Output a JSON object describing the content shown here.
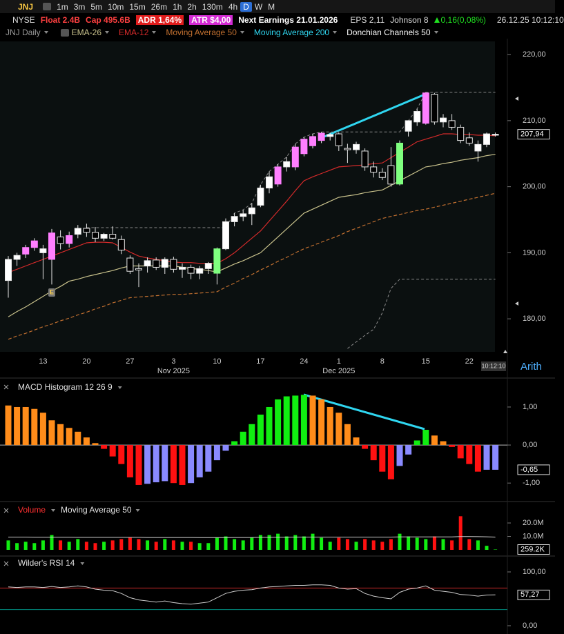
{
  "toolbar": {
    "symbol": "JNJ",
    "timeframes": [
      "1m",
      "3m",
      "5m",
      "10m",
      "15m",
      "26m",
      "1h",
      "2h",
      "130m",
      "4h",
      "D",
      "W",
      "M"
    ],
    "active": "D"
  },
  "info": {
    "exchange": "NYSE",
    "float": "Float 2.4B",
    "cap": "Cap 495.6B",
    "adr": "ADR  1,64%",
    "atr": "ATR $4,00",
    "earnings": "Next Earnings 21.01.2026",
    "eps": "EPS 2,11",
    "company": "Johnson 8",
    "change": "0,16(0,08%)",
    "datetime": "26.12.25  10:12:10"
  },
  "time_label": "10:12:10",
  "scale_mode": "Arith",
  "chart_data": [
    {
      "type": "candlestick",
      "title": "JNJ Daily",
      "categories": [
        null,
        null,
        null,
        null,
        "13",
        null,
        null,
        null,
        null,
        "20",
        null,
        null,
        null,
        null,
        "27",
        null,
        null,
        null,
        null,
        "3",
        null,
        null,
        null,
        null,
        "10",
        null,
        null,
        null,
        null,
        "17",
        null,
        null,
        null,
        null,
        "24",
        null,
        null,
        null,
        "1",
        null,
        null,
        null,
        null,
        "8",
        null,
        null,
        null,
        null,
        "15",
        null,
        null,
        null,
        null,
        "22",
        null,
        null,
        null
      ],
      "month_labels": [
        null,
        null,
        null,
        null,
        null,
        null,
        null,
        null,
        null,
        null,
        null,
        null,
        null,
        null,
        null,
        null,
        null,
        null,
        null,
        "Nov 2025",
        null,
        null,
        null,
        null,
        null,
        null,
        null,
        null,
        null,
        null,
        null,
        null,
        null,
        null,
        null,
        null,
        null,
        null,
        "Dec 2025",
        null,
        null,
        null,
        null,
        null,
        null,
        null,
        null,
        null,
        null,
        null,
        null,
        null,
        null,
        null,
        null,
        null,
        null
      ],
      "open": [
        185.8,
        189.0,
        189.8,
        190.8,
        190.0,
        189.0,
        192.4,
        191.4,
        192.8,
        193.7,
        193.1,
        192.2,
        192.8,
        192.0,
        189.2,
        187.6,
        188.0,
        188.9,
        187.8,
        189.0,
        187.5,
        187.8,
        186.9,
        187.6,
        186.9,
        190.6,
        194.7,
        195.5,
        195.9,
        197.2,
        199.8,
        200.4,
        203.0,
        203.0,
        205.0,
        206.2,
        207.0,
        207.6,
        208.0,
        205.8,
        205.6,
        205.4,
        203.0,
        202.2,
        203.2,
        200.4,
        208.4,
        209.8,
        209.6,
        214.0,
        209.8,
        210.0,
        209.0,
        207.4,
        205.4,
        206.4,
        207.8
      ],
      "high": [
        189.5,
        190.0,
        191.2,
        192.2,
        191.2,
        193.6,
        193.4,
        193.2,
        194.2,
        194.4,
        193.9,
        193.0,
        194.0,
        192.6,
        189.6,
        188.4,
        189.3,
        189.3,
        189.3,
        189.4,
        188.4,
        188.2,
        188.0,
        188.6,
        190.8,
        195.2,
        196.0,
        196.5,
        197.5,
        200.3,
        202.3,
        203.4,
        204.5,
        206.5,
        207.5,
        208.0,
        208.3,
        208.2,
        208.2,
        206.5,
        206.8,
        205.8,
        203.8,
        202.8,
        206.0,
        207.0,
        210.0,
        211.8,
        214.3,
        214.2,
        211.0,
        211.0,
        209.4,
        208.2,
        207.0,
        208.2,
        208.2
      ],
      "low": [
        183.2,
        188.0,
        189.2,
        190.3,
        186.0,
        185.2,
        190.5,
        190.8,
        192.2,
        192.4,
        191.6,
        191.8,
        192.0,
        189.8,
        186.8,
        184.8,
        187.0,
        187.4,
        186.8,
        187.0,
        186.2,
        186.0,
        186.0,
        186.8,
        185.2,
        190.4,
        194.0,
        194.8,
        194.2,
        196.9,
        199.0,
        200.0,
        202.3,
        202.5,
        204.6,
        205.8,
        206.6,
        207.0,
        205.4,
        203.6,
        205.0,
        202.4,
        201.4,
        201.0,
        200.0,
        200.2,
        207.6,
        209.2,
        209.4,
        209.4,
        209.0,
        208.6,
        206.6,
        206.2,
        203.8,
        206.0,
        207.6
      ],
      "close": [
        189.0,
        189.6,
        190.8,
        191.8,
        190.6,
        193.0,
        191.4,
        192.6,
        193.7,
        193.1,
        192.2,
        192.8,
        192.2,
        190.4,
        187.2,
        187.4,
        188.8,
        187.8,
        189.0,
        187.5,
        187.8,
        186.9,
        187.6,
        188.4,
        190.6,
        194.7,
        195.5,
        195.9,
        196.8,
        199.8,
        201.5,
        203.0,
        203.8,
        206.0,
        207.2,
        207.6,
        208.1,
        207.9,
        206.2,
        205.6,
        206.4,
        203.0,
        202.2,
        201.4,
        200.4,
        206.6,
        210.0,
        211.4,
        214.2,
        209.8,
        210.4,
        209.0,
        207.0,
        206.6,
        206.4,
        208.0,
        207.94
      ],
      "last_label": "207,94",
      "colors": [
        "#ffffff",
        "#ffffff",
        "#ff7fff",
        "#ff7fff",
        "#ffffff",
        "#ff7fff",
        "#000000",
        "#ff7fff",
        "#ffffff",
        "#000000",
        "#000000",
        "#ffffff",
        "#000000",
        "#000000",
        "#000000",
        "#000000",
        "#ffffff",
        "#000000",
        "#ffffff",
        "#000000",
        "#ffffff",
        "#000000",
        "#ffffff",
        "#ffffff",
        "#7fff7f",
        "#ffffff",
        "#ffffff",
        "#ffffff",
        "#ffffff",
        "#ffffff",
        "#ffffff",
        "#ff7fff",
        "#ffffff",
        "#ff7fff",
        "#ff7fff",
        "#ff7fff",
        "#ff7fff",
        "#ffffff",
        "#000000",
        "#000000",
        "#ffffff",
        "#000000",
        "#000000",
        "#000000",
        "#000000",
        "#7fff7f",
        "#ffffff",
        "#ffffff",
        "#ff7fff",
        "#000000",
        "#ffffff",
        "#000000",
        "#000000",
        "#000000",
        "#ffffff",
        "#ffffff",
        "#ffffff"
      ],
      "events": [
        {
          "index": 5,
          "label": "E"
        }
      ],
      "overlays": [
        {
          "name": "EMA-26",
          "color": "#c9c28c",
          "dash": false,
          "values": [
            180.3,
            181.1,
            181.8,
            182.6,
            183.4,
            184.2,
            184.9,
            185.7,
            186.0,
            186.4,
            186.7,
            187.0,
            187.3,
            187.7,
            188.0,
            188.0,
            188.0,
            188.0,
            188.0,
            188.0,
            187.8,
            187.6,
            187.5,
            187.3,
            187.1,
            187.7,
            188.3,
            188.8,
            189.4,
            190.0,
            191.2,
            192.4,
            193.6,
            194.8,
            196.0,
            196.6,
            197.2,
            197.8,
            198.4,
            198.6,
            198.8,
            199.1,
            199.3,
            199.5,
            200.2,
            200.9,
            201.6,
            202.3,
            203.0,
            203.2,
            203.5,
            203.7,
            204.0,
            204.2,
            204.4,
            204.7,
            204.9
          ]
        },
        {
          "name": "EMA-12",
          "color": "#d42a2a",
          "dash": false,
          "values": [
            187.0,
            187.5,
            188.0,
            188.5,
            189.0,
            189.5,
            190.0,
            190.5,
            191.0,
            191.5,
            191.6,
            191.6,
            191.5,
            190.8,
            190.1,
            189.5,
            189.2,
            189.0,
            188.8,
            188.6,
            188.5,
            188.5,
            188.4,
            188.4,
            188.4,
            189.1,
            190.0,
            191.1,
            192.2,
            193.3,
            194.8,
            196.3,
            197.8,
            199.4,
            200.9,
            201.5,
            202.0,
            202.5,
            203.0,
            203.1,
            203.2,
            203.3,
            203.5,
            203.6,
            204.4,
            205.2,
            206.0,
            206.8,
            207.2,
            207.6,
            208.0,
            208.0,
            207.9,
            207.9,
            207.8,
            207.8,
            207.7
          ]
        },
        {
          "name": "Moving Average 50",
          "color": "#c27030",
          "dash": true,
          "values": [
            176.9,
            177.4,
            177.8,
            178.3,
            178.8,
            179.2,
            179.7,
            180.1,
            180.6,
            181.0,
            181.5,
            181.9,
            182.4,
            182.8,
            183.2,
            183.3,
            183.4,
            183.5,
            183.6,
            183.7,
            183.7,
            183.8,
            183.9,
            184.0,
            184.1,
            184.8,
            185.4,
            186.1,
            186.7,
            187.4,
            188.0,
            188.7,
            189.3,
            190.0,
            190.6,
            191.1,
            191.6,
            192.1,
            192.6,
            193.2,
            193.7,
            194.2,
            194.7,
            195.2,
            195.5,
            195.8,
            196.1,
            196.4,
            196.6,
            196.9,
            197.2,
            197.5,
            197.8,
            198.1,
            198.4,
            198.7,
            199.0
          ]
        },
        {
          "name": "Moving Average 200",
          "color": "#2fd6f0"
        }
      ],
      "donchian": {
        "name": "Donchian Channels 50",
        "color": "#8a8a8a",
        "upper": [
          null,
          null,
          null,
          null,
          null,
          null,
          null,
          null,
          null,
          193.8,
          193.8,
          193.8,
          193.8,
          193.8,
          193.8,
          193.8,
          193.8,
          193.8,
          193.8,
          193.8,
          193.8,
          193.8,
          193.8,
          193.8,
          193.8,
          193.8,
          196.0,
          196.5,
          197.5,
          200.3,
          202.3,
          203.4,
          204.5,
          206.5,
          207.5,
          208.0,
          208.3,
          208.3,
          208.3,
          208.3,
          208.3,
          208.3,
          208.3,
          208.3,
          208.3,
          208.3,
          210.0,
          211.8,
          214.3,
          214.3,
          214.3,
          214.3,
          214.3,
          214.3,
          214.3,
          214.3,
          214.3
        ],
        "lower": [
          null,
          null,
          null,
          null,
          null,
          null,
          null,
          null,
          null,
          null,
          null,
          null,
          null,
          null,
          null,
          null,
          null,
          null,
          null,
          null,
          null,
          null,
          null,
          null,
          null,
          null,
          null,
          null,
          null,
          null,
          null,
          null,
          null,
          null,
          null,
          null,
          null,
          null,
          null,
          175.5,
          176.5,
          177.5,
          178.4,
          180.9,
          184.6,
          186.0,
          186.0,
          186.0,
          186.0,
          186.0,
          186.0,
          186.0,
          186.0,
          186.0,
          186.0,
          186.0,
          186.0
        ]
      },
      "ylim": [
        175,
        222
      ],
      "yticks": [
        {
          "value": 180,
          "label": "180,00"
        },
        {
          "value": 190,
          "label": "190,00"
        },
        {
          "value": 200,
          "label": "200,00"
        },
        {
          "value": 210,
          "label": "210,00"
        },
        {
          "value": 220,
          "label": "220,00"
        }
      ],
      "grid": false
    },
    {
      "type": "bar",
      "title": "MACD Histogram 12 26 9",
      "values": [
        1.04,
        1.0,
        1.0,
        0.95,
        0.85,
        0.65,
        0.55,
        0.45,
        0.35,
        0.2,
        0.05,
        -0.1,
        -0.3,
        -0.5,
        -0.85,
        -1.05,
        -1.02,
        -0.98,
        -0.95,
        -1.0,
        -1.05,
        -1.0,
        -0.85,
        -0.7,
        -0.4,
        -0.15,
        0.1,
        0.35,
        0.55,
        0.8,
        1.0,
        1.2,
        1.28,
        1.3,
        1.32,
        1.3,
        1.2,
        1.0,
        0.85,
        0.55,
        0.2,
        -0.1,
        -0.4,
        -0.7,
        -0.9,
        -0.55,
        -0.25,
        0.12,
        0.4,
        0.25,
        0.1,
        -0.05,
        -0.35,
        -0.5,
        -0.7,
        -0.65,
        -0.65
      ],
      "last_label": "-0,65",
      "colors": [
        "#ff8c1a",
        "#ff8c1a",
        "#ff8c1a",
        "#ff8c1a",
        "#ff8c1a",
        "#ff8c1a",
        "#ff8c1a",
        "#ff8c1a",
        "#ff8c1a",
        "#ff8c1a",
        "#ff8c1a",
        "#ff1111",
        "#ff1111",
        "#ff1111",
        "#ff1111",
        "#ff1111",
        "#8a8aff",
        "#8a8aff",
        "#8a8aff",
        "#ff1111",
        "#ff1111",
        "#8a8aff",
        "#8a8aff",
        "#8a8aff",
        "#8a8aff",
        "#8a8aff",
        "#11ee11",
        "#11ee11",
        "#11ee11",
        "#11ee11",
        "#11ee11",
        "#11ee11",
        "#11ee11",
        "#11ee11",
        "#11ee11",
        "#ff8c1a",
        "#ff8c1a",
        "#ff8c1a",
        "#ff8c1a",
        "#ff8c1a",
        "#ff8c1a",
        "#ff1111",
        "#ff1111",
        "#ff1111",
        "#ff1111",
        "#8a8aff",
        "#8a8aff",
        "#11ee11",
        "#11ee11",
        "#ff8c1a",
        "#ff8c1a",
        "#ff1111",
        "#ff1111",
        "#ff1111",
        "#ff1111",
        "#8a8aff",
        "#8a8aff"
      ],
      "ylim": [
        -1.45,
        1.58
      ],
      "yticks": [
        {
          "value": -1,
          "label": "-1,00"
        },
        {
          "value": 0,
          "label": "0,00"
        },
        {
          "value": 1,
          "label": "1,00"
        }
      ],
      "zero_line": true
    },
    {
      "type": "bar",
      "title": "Volume",
      "title_color": "#ff3030",
      "up_color": "#11ee11",
      "down_color": "#ff1111",
      "values": [
        7000000,
        5000000,
        6000000,
        5000000,
        7000000,
        11000000,
        7000000,
        6000000,
        8000000,
        6000000,
        5000000,
        6000000,
        7000000,
        8000000,
        9000000,
        8000000,
        7000000,
        6000000,
        8000000,
        7000000,
        6000000,
        6000000,
        5000000,
        5000000,
        9000000,
        10000000,
        8000000,
        7000000,
        9000000,
        11000000,
        11000000,
        12000000,
        10000000,
        11000000,
        10000000,
        12000000,
        9000000,
        6000000,
        9000000,
        8000000,
        6000000,
        8000000,
        7000000,
        6000000,
        8000000,
        12000000,
        10000000,
        9000000,
        8000000,
        10000000,
        8000000,
        7000000,
        25000000,
        8000000,
        7000000,
        3000000,
        259200
      ],
      "last_label": "259.2K",
      "series": [
        {
          "name": "Moving Average 50",
          "color": "#cfcfcf",
          "values": [
            9500000,
            9500000,
            9500000,
            9400000,
            9400000,
            9400000,
            9400000,
            9400000,
            9300000,
            9300000,
            9300000,
            9300000,
            9300000,
            9300000,
            9300000,
            9300000,
            9200000,
            9200000,
            9200000,
            9200000,
            9200000,
            9200000,
            9100000,
            9100000,
            9100000,
            9100000,
            9200000,
            9200000,
            9200000,
            9300000,
            9300000,
            9400000,
            9400000,
            9500000,
            9500000,
            9500000,
            9500000,
            9500000,
            9500000,
            9500000,
            9500000,
            9500000,
            9500000,
            9500000,
            9500000,
            9600000,
            9600000,
            9600000,
            9600000,
            9600000,
            9600000,
            9600000,
            9900000,
            9900000,
            9800000,
            9700000,
            9500000
          ]
        }
      ],
      "ylim": [
        0,
        26700000
      ],
      "yticks": [
        {
          "value": 10000000,
          "label": "10.0M"
        },
        {
          "value": 20000000,
          "label": "20.0M"
        }
      ]
    },
    {
      "type": "line",
      "title": "Wilder's RSI 14",
      "color": "#cfcfcf",
      "values": [
        72,
        71,
        72,
        72,
        71,
        73,
        71,
        72,
        74,
        72,
        68,
        66,
        65,
        60,
        52,
        48,
        46,
        44,
        46,
        43,
        41,
        40,
        42,
        44,
        52,
        60,
        64,
        66,
        67,
        70,
        72,
        73,
        74,
        75,
        75,
        76,
        76,
        75,
        70,
        68,
        69,
        60,
        55,
        52,
        50,
        62,
        68,
        70,
        74,
        66,
        64,
        62,
        58,
        57,
        55,
        57,
        57.27
      ],
      "last_label": "57,27",
      "levels": [
        {
          "value": 70,
          "color": "#c62828"
        },
        {
          "value": 30,
          "color": "#00897b"
        }
      ],
      "ylim": [
        -6.4,
        121.8
      ],
      "yticks": [
        {
          "value": 0,
          "label": "0,00"
        },
        {
          "value": 100,
          "label": "100,00"
        }
      ]
    }
  ]
}
